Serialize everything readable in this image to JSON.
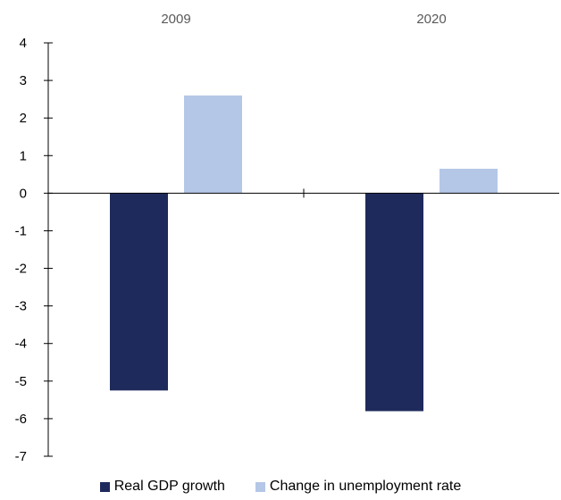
{
  "chart_data": {
    "type": "bar",
    "categories": [
      "2009",
      "2020"
    ],
    "series": [
      {
        "name": "Real GDP growth",
        "values": [
          -5.25,
          -5.8
        ],
        "color": "#1f2a5c"
      },
      {
        "name": "Change in unemployment rate",
        "values": [
          2.6,
          0.65
        ],
        "color": "#b4c7e7"
      }
    ],
    "ylim": [
      -7,
      4
    ],
    "yticks": [
      "-7",
      "-6",
      "-5",
      "-4",
      "-3",
      "-2",
      "-1",
      "0",
      "1",
      "2",
      "3",
      "4"
    ],
    "category_labels_position": "top",
    "legend_position": "bottom",
    "grid": false
  }
}
